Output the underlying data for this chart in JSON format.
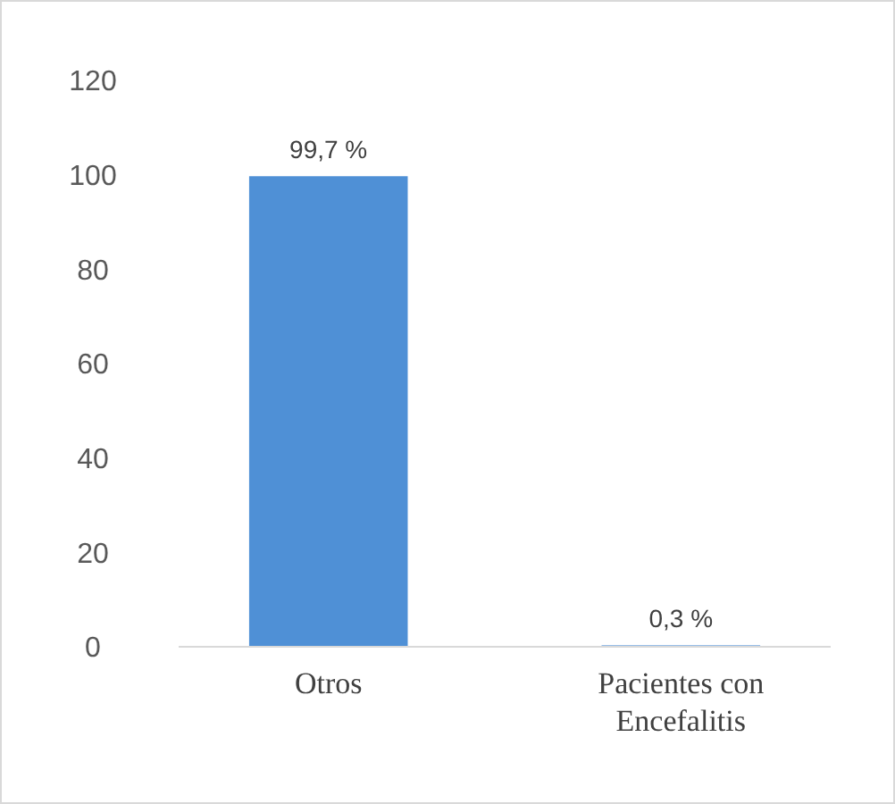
{
  "chart_data": {
    "type": "bar",
    "categories": [
      "Otros",
      "Pacientes con Encefalitis"
    ],
    "values": [
      99.7,
      0.3
    ],
    "value_labels": [
      "99,7 %",
      "0,3 %"
    ],
    "color": "#4f90d6",
    "ylim": [
      0,
      120
    ],
    "yticks": [
      0,
      20,
      40,
      60,
      80,
      100,
      120
    ],
    "grid": false
  }
}
